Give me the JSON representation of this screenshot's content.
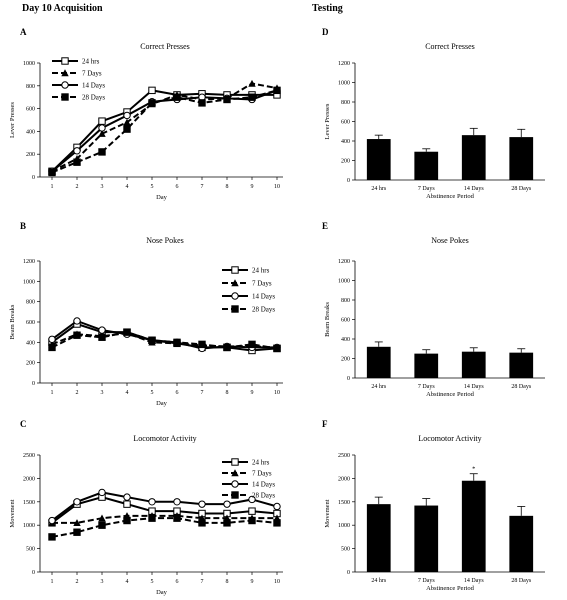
{
  "headers": {
    "left": "Day 10 Acquisition",
    "right": "Testing"
  },
  "chart_data": [
    {
      "panel": "A",
      "type": "line",
      "title": "Correct Presses",
      "xlabel": "Day",
      "ylabel": "Lever Presses",
      "x": [
        1,
        2,
        3,
        4,
        5,
        6,
        7,
        8,
        9,
        10
      ],
      "ylim": [
        0,
        1000
      ],
      "yticks": [
        0,
        200,
        400,
        600,
        800,
        1000
      ],
      "legend_position": "top-left",
      "series": [
        {
          "name": "24 hrs",
          "style": "solid",
          "marker": "open-square",
          "values": [
            50,
            260,
            490,
            570,
            760,
            720,
            730,
            720,
            720,
            720
          ]
        },
        {
          "name": "7 Days",
          "style": "dashed",
          "marker": "filled-triangle",
          "values": [
            50,
            160,
            380,
            480,
            640,
            720,
            680,
            690,
            820,
            780
          ]
        },
        {
          "name": "14 Days",
          "style": "solid",
          "marker": "open-circle",
          "values": [
            50,
            230,
            430,
            540,
            660,
            680,
            700,
            690,
            680,
            760
          ]
        },
        {
          "name": "28 Days",
          "style": "dashed",
          "marker": "filled-square",
          "values": [
            40,
            130,
            220,
            420,
            650,
            700,
            650,
            680,
            700,
            760
          ]
        }
      ]
    },
    {
      "panel": "D",
      "type": "bar",
      "title": "Correct Presses",
      "xlabel": "Abstinence Period",
      "ylabel": "Lever Presses",
      "categories": [
        "24 hrs",
        "7 Days",
        "14 Days",
        "28 Days"
      ],
      "values": [
        420,
        290,
        460,
        440
      ],
      "errors": [
        40,
        30,
        70,
        80
      ],
      "ylim": [
        0,
        1200
      ],
      "yticks": [
        0,
        200,
        400,
        600,
        800,
        1000,
        1200
      ]
    },
    {
      "panel": "B",
      "type": "line",
      "title": "Nose Pokes",
      "xlabel": "Day",
      "ylabel": "Beam Breaks",
      "x": [
        1,
        2,
        3,
        4,
        5,
        6,
        7,
        8,
        9,
        10
      ],
      "ylim": [
        0,
        1200
      ],
      "yticks": [
        0,
        200,
        400,
        600,
        800,
        1000,
        1200
      ],
      "legend_position": "top-right",
      "series": [
        {
          "name": "24 hrs",
          "style": "solid",
          "marker": "open-square",
          "values": [
            400,
            580,
            500,
            500,
            420,
            390,
            350,
            350,
            320,
            340
          ]
        },
        {
          "name": "7 Days",
          "style": "dashed",
          "marker": "filled-triangle",
          "values": [
            380,
            480,
            460,
            490,
            400,
            390,
            370,
            360,
            360,
            350
          ]
        },
        {
          "name": "14 Days",
          "style": "solid",
          "marker": "open-circle",
          "values": [
            430,
            610,
            520,
            480,
            420,
            400,
            340,
            360,
            350,
            350
          ]
        },
        {
          "name": "28 Days",
          "style": "dashed",
          "marker": "filled-square",
          "values": [
            350,
            470,
            450,
            500,
            420,
            400,
            380,
            350,
            380,
            340
          ]
        }
      ]
    },
    {
      "panel": "E",
      "type": "bar",
      "title": "Nose Pokes",
      "xlabel": "Abstinence Period",
      "ylabel": "Beam Breaks",
      "categories": [
        "24 hrs",
        "7 Days",
        "14 Days",
        "28 Days"
      ],
      "values": [
        320,
        250,
        270,
        260
      ],
      "errors": [
        50,
        40,
        40,
        40
      ],
      "ylim": [
        0,
        1200
      ],
      "yticks": [
        0,
        200,
        400,
        600,
        800,
        1000,
        1200
      ]
    },
    {
      "panel": "C",
      "type": "line",
      "title": "Locomotor Activity",
      "xlabel": "Day",
      "ylabel": "Movement",
      "x": [
        1,
        2,
        3,
        4,
        5,
        6,
        7,
        8,
        9,
        10
      ],
      "ylim": [
        0,
        2500
      ],
      "yticks": [
        0,
        500,
        1000,
        1500,
        2000,
        2500
      ],
      "legend_position": "top-right",
      "series": [
        {
          "name": "24 hrs",
          "style": "solid",
          "marker": "open-square",
          "values": [
            1050,
            1450,
            1600,
            1450,
            1300,
            1300,
            1250,
            1250,
            1300,
            1250
          ]
        },
        {
          "name": "7 Days",
          "style": "dashed",
          "marker": "filled-triangle",
          "values": [
            1050,
            1050,
            1150,
            1200,
            1200,
            1200,
            1150,
            1150,
            1150,
            1150
          ]
        },
        {
          "name": "14 Days",
          "style": "solid",
          "marker": "open-circle",
          "values": [
            1100,
            1500,
            1700,
            1600,
            1500,
            1500,
            1450,
            1450,
            1550,
            1400
          ]
        },
        {
          "name": "28 Days",
          "style": "dashed",
          "marker": "filled-square",
          "values": [
            750,
            850,
            1000,
            1100,
            1150,
            1150,
            1050,
            1050,
            1100,
            1050
          ]
        }
      ]
    },
    {
      "panel": "F",
      "type": "bar",
      "title": "Locomotor Activity",
      "xlabel": "Abstinence Period",
      "ylabel": "Movement",
      "categories": [
        "24 hrs",
        "7 Days",
        "14 Days",
        "28 Days"
      ],
      "values": [
        1450,
        1420,
        1950,
        1200
      ],
      "errors": [
        150,
        150,
        150,
        200
      ],
      "ylim": [
        0,
        2500
      ],
      "yticks": [
        0,
        500,
        1000,
        1500,
        2000,
        2500
      ],
      "annotations": [
        {
          "category": "14 Days",
          "text": "*"
        }
      ]
    }
  ]
}
